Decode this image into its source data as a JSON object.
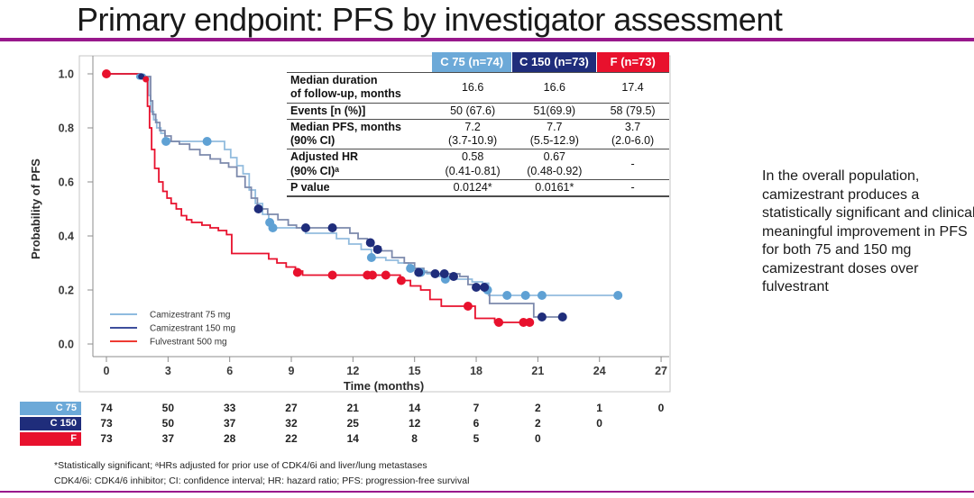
{
  "slide": {
    "title": "Primary endpoint: PFS by investigator assessment",
    "accent_color": "#98188C"
  },
  "stats_table": {
    "columns": [
      {
        "label": "C 75 (n=74)",
        "color": "#6CA9D8"
      },
      {
        "label": "C 150 (n=73)",
        "color": "#1F2D7B"
      },
      {
        "label": "F (n=73)",
        "color": "#E8112D"
      }
    ],
    "rows": [
      {
        "label": "Median duration\nof follow-up, months",
        "values": [
          "16.6",
          "16.6",
          "17.4"
        ]
      },
      {
        "label": "Events [n (%)]",
        "values": [
          "50 (67.6)",
          "51(69.9)",
          "58 (79.5)"
        ]
      },
      {
        "label": "Median PFS, months\n(90% CI)",
        "values": [
          "7.2\n(3.7-10.9)",
          "7.7\n(5.5-12.9)",
          "3.7\n(2.0-6.0)"
        ]
      },
      {
        "label": "Adjusted HR\n(90% CI)ᵃ",
        "values": [
          "0.58\n(0.41-0.81)",
          "0.67\n(0.48-0.92)",
          "-"
        ]
      },
      {
        "label": "P value",
        "values": [
          "0.0124*",
          "0.0161*",
          "-"
        ]
      }
    ]
  },
  "chart_data": {
    "type": "line",
    "subtype": "kaplan-meier-step",
    "xlabel": "Time (months)",
    "ylabel": "Probability of PFS",
    "xlim": [
      0,
      27
    ],
    "ylim": [
      0.0,
      1.0
    ],
    "x_ticks": [
      0,
      3,
      6,
      9,
      12,
      15,
      18,
      21,
      24,
      27
    ],
    "y_ticks": [
      0.0,
      0.2,
      0.4,
      0.6,
      0.8,
      1.0
    ],
    "grid": false,
    "legend_position": "lower-left-inside",
    "series": [
      {
        "name": "Camizestrant 75 mg",
        "line_color": "#92BCDE",
        "marker_color": "#5FA1D4",
        "legend_color": "#8FBBDF",
        "steps": [
          [
            0,
            1.0
          ],
          [
            1.6,
            0.99
          ],
          [
            2.0,
            0.99
          ],
          [
            2.05,
            0.92
          ],
          [
            2.15,
            0.86
          ],
          [
            2.3,
            0.83
          ],
          [
            2.45,
            0.8
          ],
          [
            2.65,
            0.78
          ],
          [
            2.85,
            0.76
          ],
          [
            3.05,
            0.75
          ],
          [
            5.5,
            0.75
          ],
          [
            5.75,
            0.72
          ],
          [
            6.05,
            0.69
          ],
          [
            6.35,
            0.66
          ],
          [
            6.65,
            0.63
          ],
          [
            6.95,
            0.57
          ],
          [
            7.25,
            0.52
          ],
          [
            7.6,
            0.48
          ],
          [
            7.9,
            0.45
          ],
          [
            8.1,
            0.43
          ],
          [
            9.4,
            0.43
          ],
          [
            9.7,
            0.41
          ],
          [
            10.6,
            0.41
          ],
          [
            11.2,
            0.39
          ],
          [
            11.8,
            0.37
          ],
          [
            12.4,
            0.35
          ],
          [
            12.9,
            0.32
          ],
          [
            13.6,
            0.31
          ],
          [
            14.2,
            0.3
          ],
          [
            14.7,
            0.28
          ],
          [
            15.15,
            0.27
          ],
          [
            15.6,
            0.26
          ],
          [
            16.2,
            0.25
          ],
          [
            16.8,
            0.24
          ],
          [
            17.8,
            0.23
          ],
          [
            18.3,
            0.225
          ],
          [
            18.6,
            0.18
          ],
          [
            25.0,
            0.18
          ]
        ],
        "censors": [
          [
            1.6,
            0.99,
            3.5
          ],
          [
            1.78,
            0.99,
            3.5
          ],
          [
            2.9,
            0.75
          ],
          [
            4.9,
            0.75
          ],
          [
            7.95,
            0.45
          ],
          [
            8.1,
            0.43
          ],
          [
            12.9,
            0.32
          ],
          [
            14.8,
            0.28
          ],
          [
            15.3,
            0.265
          ],
          [
            16.5,
            0.24
          ],
          [
            18.55,
            0.2
          ],
          [
            19.5,
            0.18
          ],
          [
            20.4,
            0.18
          ],
          [
            21.2,
            0.18
          ],
          [
            24.9,
            0.18
          ]
        ]
      },
      {
        "name": "Camizestrant 150 mg",
        "line_color": "#7C89AC",
        "marker_color": "#1F2D7B",
        "legend_color": "#3D4E9C",
        "steps": [
          [
            0,
            1.0
          ],
          [
            1.7,
            0.99
          ],
          [
            2.1,
            0.99
          ],
          [
            2.15,
            0.9
          ],
          [
            2.25,
            0.85
          ],
          [
            2.4,
            0.82
          ],
          [
            2.6,
            0.79
          ],
          [
            2.85,
            0.77
          ],
          [
            3.15,
            0.75
          ],
          [
            3.55,
            0.74
          ],
          [
            4.05,
            0.72
          ],
          [
            4.55,
            0.7
          ],
          [
            5.05,
            0.685
          ],
          [
            5.55,
            0.67
          ],
          [
            5.95,
            0.655
          ],
          [
            6.35,
            0.62
          ],
          [
            6.75,
            0.58
          ],
          [
            7.05,
            0.54
          ],
          [
            7.35,
            0.51
          ],
          [
            7.5,
            0.5
          ],
          [
            7.85,
            0.48
          ],
          [
            8.35,
            0.46
          ],
          [
            8.85,
            0.44
          ],
          [
            9.25,
            0.43
          ],
          [
            11.4,
            0.43
          ],
          [
            11.85,
            0.41
          ],
          [
            12.25,
            0.39
          ],
          [
            12.7,
            0.375
          ],
          [
            13.0,
            0.36
          ],
          [
            13.35,
            0.345
          ],
          [
            13.9,
            0.32
          ],
          [
            14.5,
            0.3
          ],
          [
            15.0,
            0.28
          ],
          [
            15.45,
            0.265
          ],
          [
            16.1,
            0.26
          ],
          [
            17.2,
            0.25
          ],
          [
            17.6,
            0.22
          ],
          [
            18.05,
            0.21
          ],
          [
            18.65,
            0.15
          ],
          [
            20.35,
            0.15
          ],
          [
            20.8,
            0.1
          ],
          [
            22.3,
            0.1
          ]
        ],
        "censors": [
          [
            1.7,
            0.99,
            3.5
          ],
          [
            7.4,
            0.5
          ],
          [
            9.7,
            0.43
          ],
          [
            11.0,
            0.43
          ],
          [
            12.85,
            0.375
          ],
          [
            13.2,
            0.35
          ],
          [
            15.2,
            0.265
          ],
          [
            16.0,
            0.26
          ],
          [
            16.45,
            0.26
          ],
          [
            16.9,
            0.25
          ],
          [
            18.0,
            0.21
          ],
          [
            18.4,
            0.21
          ],
          [
            21.2,
            0.1
          ],
          [
            22.2,
            0.1
          ]
        ]
      },
      {
        "name": "Fulvestrant 500 mg",
        "line_color": "#E8112D",
        "marker_color": "#E8112D",
        "legend_color": "#EE3B33",
        "steps": [
          [
            0,
            1.0
          ],
          [
            1.6,
            0.985
          ],
          [
            1.95,
            0.98
          ],
          [
            2.0,
            0.88
          ],
          [
            2.1,
            0.8
          ],
          [
            2.2,
            0.72
          ],
          [
            2.35,
            0.65
          ],
          [
            2.55,
            0.6
          ],
          [
            2.75,
            0.565
          ],
          [
            2.95,
            0.54
          ],
          [
            3.15,
            0.52
          ],
          [
            3.4,
            0.5
          ],
          [
            3.65,
            0.475
          ],
          [
            3.9,
            0.46
          ],
          [
            4.15,
            0.45
          ],
          [
            4.65,
            0.44
          ],
          [
            5.05,
            0.43
          ],
          [
            5.45,
            0.42
          ],
          [
            5.85,
            0.405
          ],
          [
            6.1,
            0.335
          ],
          [
            7.6,
            0.335
          ],
          [
            7.9,
            0.315
          ],
          [
            8.3,
            0.3
          ],
          [
            8.75,
            0.285
          ],
          [
            9.2,
            0.27
          ],
          [
            9.55,
            0.255
          ],
          [
            13.9,
            0.255
          ],
          [
            14.3,
            0.235
          ],
          [
            14.8,
            0.215
          ],
          [
            15.3,
            0.2
          ],
          [
            15.75,
            0.165
          ],
          [
            16.3,
            0.14
          ],
          [
            17.9,
            0.14
          ],
          [
            17.95,
            0.095
          ],
          [
            18.85,
            0.095
          ],
          [
            18.9,
            0.08
          ],
          [
            20.7,
            0.08
          ]
        ],
        "censors": [
          [
            0,
            1.0
          ],
          [
            1.92,
            0.98,
            3.5
          ],
          [
            9.3,
            0.265
          ],
          [
            11.0,
            0.255
          ],
          [
            12.7,
            0.255
          ],
          [
            12.95,
            0.255
          ],
          [
            13.6,
            0.255
          ],
          [
            14.35,
            0.235
          ],
          [
            17.6,
            0.14
          ],
          [
            19.1,
            0.08
          ],
          [
            20.3,
            0.08
          ],
          [
            20.6,
            0.08
          ]
        ]
      }
    ]
  },
  "annotation": {
    "lines": [
      "In the overall population,",
      "camizestrant produces a",
      "statistically significant and clinically",
      "meaningful improvement in PFS",
      "for both 75 and 150 mg",
      "camizestrant doses over",
      "fulvestrant"
    ]
  },
  "risk_table": {
    "rows": [
      {
        "label": "C 75",
        "color": "#6CA9D8",
        "values": [
          "74",
          "50",
          "33",
          "27",
          "21",
          "14",
          "7",
          "2",
          "1",
          "0"
        ]
      },
      {
        "label": "C 150",
        "color": "#1F2D7B",
        "values": [
          "73",
          "50",
          "37",
          "32",
          "25",
          "12",
          "6",
          "2",
          "0"
        ]
      },
      {
        "label": "F",
        "color": "#E8112D",
        "values": [
          "73",
          "37",
          "28",
          "22",
          "14",
          "8",
          "5",
          "0"
        ]
      }
    ]
  },
  "footnotes": [
    "*Statistically significant; ᵃHRs adjusted for prior use of CDK4/6i and liver/lung metastases",
    "CDK4/6i: CDK4/6 inhibitor; CI: confidence interval; HR: hazard ratio; PFS: progression-free survival"
  ]
}
